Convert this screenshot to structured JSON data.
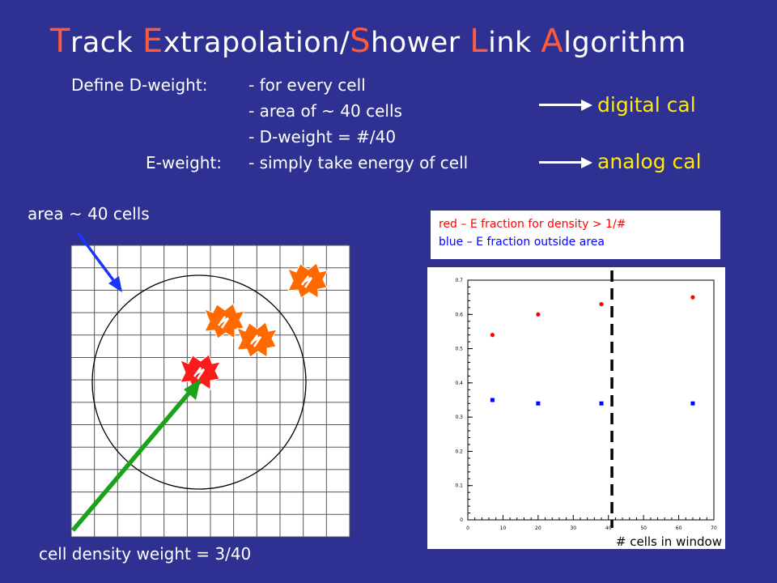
{
  "title": {
    "parts": [
      {
        "cap": "T",
        "rest": "rack "
      },
      {
        "cap": "E",
        "rest": "xtrapolation/"
      },
      {
        "cap": "S",
        "rest": "hower "
      },
      {
        "cap": "L",
        "rest": "ink "
      },
      {
        "cap": "A",
        "rest": "lgorithm"
      }
    ]
  },
  "definitions": {
    "dweight_label": "Define D-weight:",
    "line1": "- for every cell",
    "line2": "- area of ~ 40 cells",
    "line3": "- D-weight = #/40",
    "eweight_label": "E-weight:",
    "line4": "- simply take energy of cell"
  },
  "targets": {
    "digital": "digital cal",
    "analog": "analog cal"
  },
  "grid_diagram": {
    "area_label": "area ~ 40 cells",
    "density_label": "cell density weight = 3/40",
    "colors": {
      "grid_line": "#555555",
      "blue_arrow": "#1a33ff",
      "green_arrow": "#1aa31a",
      "hit_orange": "#ff6a00",
      "hit_red": "#ff1a1a"
    }
  },
  "legend": {
    "red_text": "red – E fraction for density > 1/#",
    "blue_text": "blue – E fraction outside area"
  },
  "chart_data": {
    "type": "scatter",
    "xlabel": "# cells in window",
    "ylabel": "",
    "xlim": [
      0,
      70
    ],
    "ylim": [
      0,
      0.7
    ],
    "xticks": [
      "0",
      "10",
      "20",
      "30",
      "40",
      "50",
      "60",
      "70"
    ],
    "yticks": [
      "0",
      "0.1",
      "0.2",
      "0.3",
      "0.4",
      "0.5",
      "0.6",
      "0.7"
    ],
    "series": [
      {
        "color": "#ff0000",
        "marker": "circle",
        "points": [
          [
            7,
            0.54
          ],
          [
            20,
            0.6
          ],
          [
            38,
            0.63
          ],
          [
            64,
            0.65
          ]
        ]
      },
      {
        "color": "#0000ff",
        "marker": "square",
        "points": [
          [
            7,
            0.35
          ],
          [
            20,
            0.34
          ],
          [
            38,
            0.34
          ],
          [
            64,
            0.34
          ]
        ]
      }
    ],
    "vline_x": 41
  }
}
